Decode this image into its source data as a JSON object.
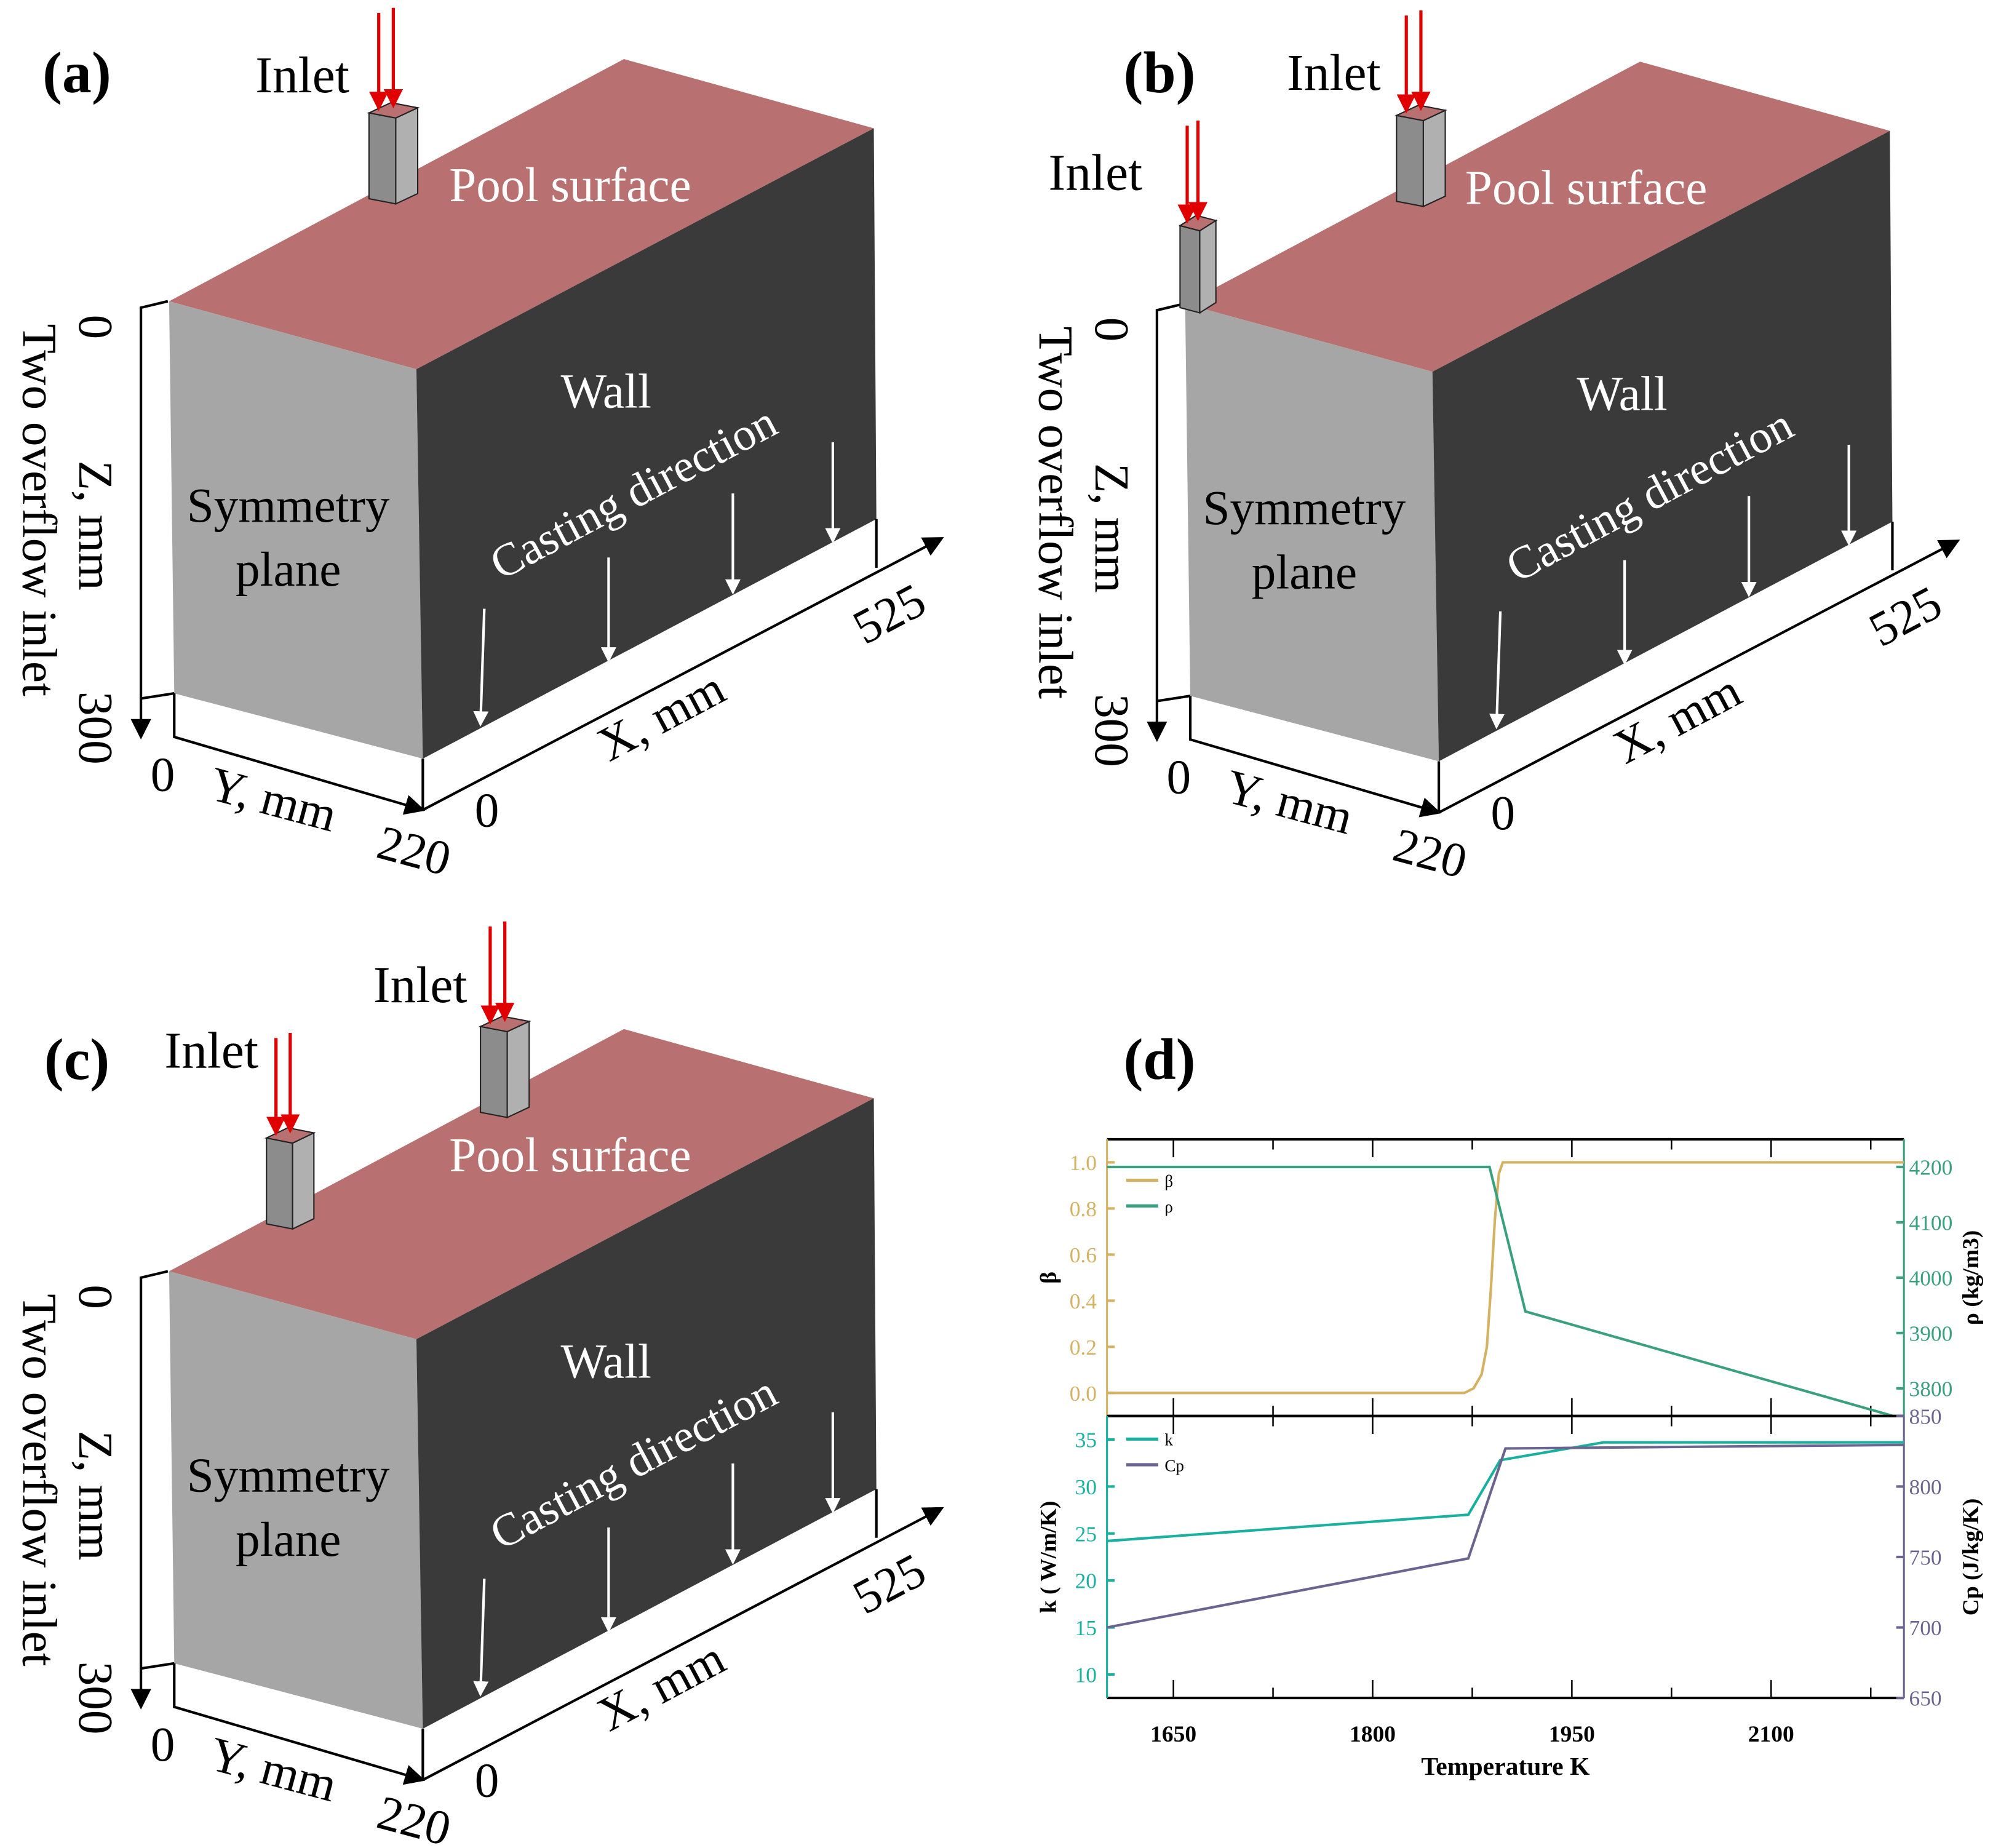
{
  "colors": {
    "top_face": "#b87070",
    "symmetry_face": "#a6a6a6",
    "wall_face": "#3a3a3a",
    "inlet_arrow": "#e00000",
    "beta": "#d4b263",
    "rho": "#3aa07e",
    "k": "#19b0a0",
    "cp": "#6c6490"
  },
  "panels": [
    {
      "label": "(a)",
      "inlet_labels": [
        "Inlet"
      ],
      "pool_surface": "Pool surface",
      "wall": "Wall",
      "symmetry_1": "Symmetry",
      "symmetry_2": "plane",
      "casting_direction": "Casting direction",
      "z_axis": "Z, mm",
      "overflow": "Two overflow inlet",
      "z_min": "0",
      "z_max": "300",
      "y_axis": "Y, mm",
      "y_min": "0",
      "y_max": "220",
      "x_axis": "X, mm",
      "x_min": "0",
      "x_max": "525"
    },
    {
      "label": "(b)",
      "inlet_labels": [
        "Inlet",
        "Inlet"
      ],
      "pool_surface": "Pool surface",
      "wall": "Wall",
      "symmetry_1": "Symmetry",
      "symmetry_2": "plane",
      "casting_direction": "Casting direction",
      "z_axis": "Z, mm",
      "overflow": "Two overflow inlet",
      "z_min": "0",
      "z_max": "300",
      "y_axis": "Y, mm",
      "y_min": "0",
      "y_max": "220",
      "x_axis": "X, mm",
      "x_min": "0",
      "x_max": "525"
    },
    {
      "label": "(c)",
      "inlet_labels": [
        "Inlet",
        "Inlet"
      ],
      "pool_surface": "Pool surface",
      "wall": "Wall",
      "symmetry_1": "Symmetry",
      "symmetry_2": "plane",
      "casting_direction": "Casting direction",
      "z_axis": "Z, mm",
      "overflow": "Two overflow inlet",
      "z_min": "0",
      "z_max": "300",
      "y_axis": "Y, mm",
      "y_min": "0",
      "y_max": "220",
      "x_axis": "X, mm",
      "x_min": "0",
      "x_max": "525"
    }
  ],
  "panel_d_label": "(d)",
  "chart_data": [
    {
      "type": "line",
      "title": "",
      "xlabel": "Temperature K",
      "xlim": [
        1600,
        2200
      ],
      "xticks": [
        1650,
        1800,
        1950,
        2100
      ],
      "ylabel": "β",
      "ylim": [
        -0.1,
        1.1
      ],
      "yticks": [
        0.0,
        0.2,
        0.4,
        0.6,
        0.8,
        1.0
      ],
      "y2label": "ρ (kg/m3)",
      "y2lim": [
        3750,
        4250
      ],
      "y2ticks": [
        3800,
        3900,
        4000,
        4100,
        4200
      ],
      "legend": "top-left",
      "series": [
        {
          "name": "β",
          "axis": "left",
          "x": [
            1600,
            1869,
            1876,
            1882,
            1886,
            1889,
            1892,
            1895,
            1898,
            2200
          ],
          "y": [
            0,
            0,
            0.02,
            0.08,
            0.2,
            0.45,
            0.75,
            0.95,
            1.0,
            1.0
          ]
        },
        {
          "name": "ρ",
          "axis": "right",
          "x": [
            1600,
            1888,
            1915,
            2192
          ],
          "y": [
            4200,
            4200,
            3939,
            3750
          ]
        }
      ]
    },
    {
      "type": "line",
      "title": "",
      "xlabel": "Temperature K",
      "xlim": [
        1600,
        2200
      ],
      "xticks": [
        1650,
        1800,
        1950,
        2100
      ],
      "ylabel": "k ( W/m/K)",
      "ylim": [
        7.5,
        37.5
      ],
      "yticks": [
        10,
        15,
        20,
        25,
        30,
        35
      ],
      "y2label": "Cp (J/kg/K)",
      "y2lim": [
        650,
        850
      ],
      "y2ticks": [
        650,
        700,
        750,
        800,
        850
      ],
      "legend": "top-left",
      "series": [
        {
          "name": "k",
          "axis": "left",
          "x": [
            1600,
            1872,
            1896,
            1974,
            2200
          ],
          "y": [
            24.2,
            27.0,
            32.8,
            34.7,
            34.7
          ]
        },
        {
          "name": "Cp",
          "axis": "right",
          "x": [
            1600,
            1872,
            1900,
            2200
          ],
          "y": [
            700,
            749,
            827,
            829.5
          ]
        }
      ]
    }
  ]
}
